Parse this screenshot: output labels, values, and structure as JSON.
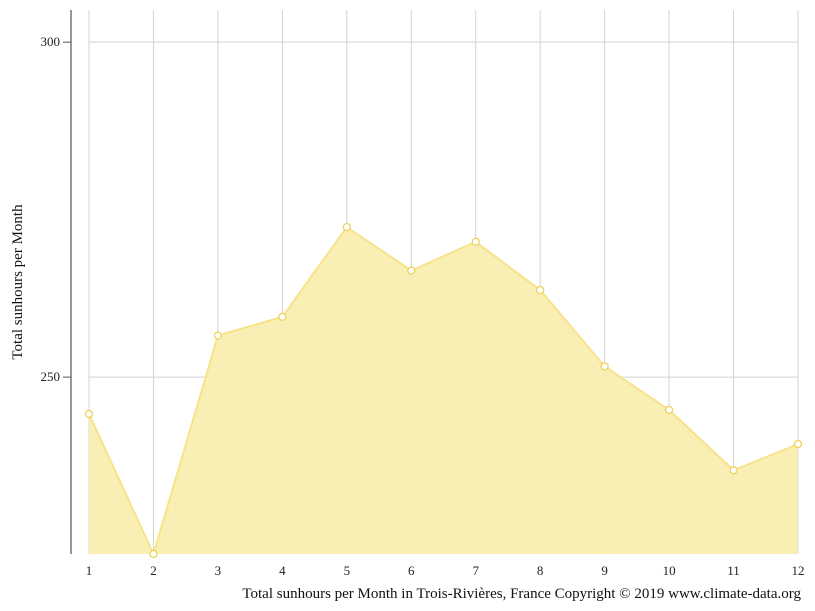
{
  "chart_data": {
    "type": "area",
    "x": [
      1,
      2,
      3,
      4,
      5,
      6,
      7,
      8,
      9,
      10,
      11,
      12
    ],
    "values": [
      244.5,
      223.6,
      256.2,
      259.0,
      272.4,
      265.9,
      270.2,
      263.0,
      251.6,
      245.1,
      236.1,
      240.0
    ],
    "ylabel": "Total sunhours per Month",
    "caption": "Total sunhours per Month in Trois-Rivières, France Copyright © 2019 www.climate-data.org",
    "yticks": [
      250,
      300
    ],
    "ylim": [
      223.6,
      304.8
    ],
    "grid": true,
    "colors": {
      "fill": "#f9eeb0",
      "line": "#f8e38a",
      "marker_stroke": "#eccf55",
      "grid": "#d3d3d3"
    }
  }
}
